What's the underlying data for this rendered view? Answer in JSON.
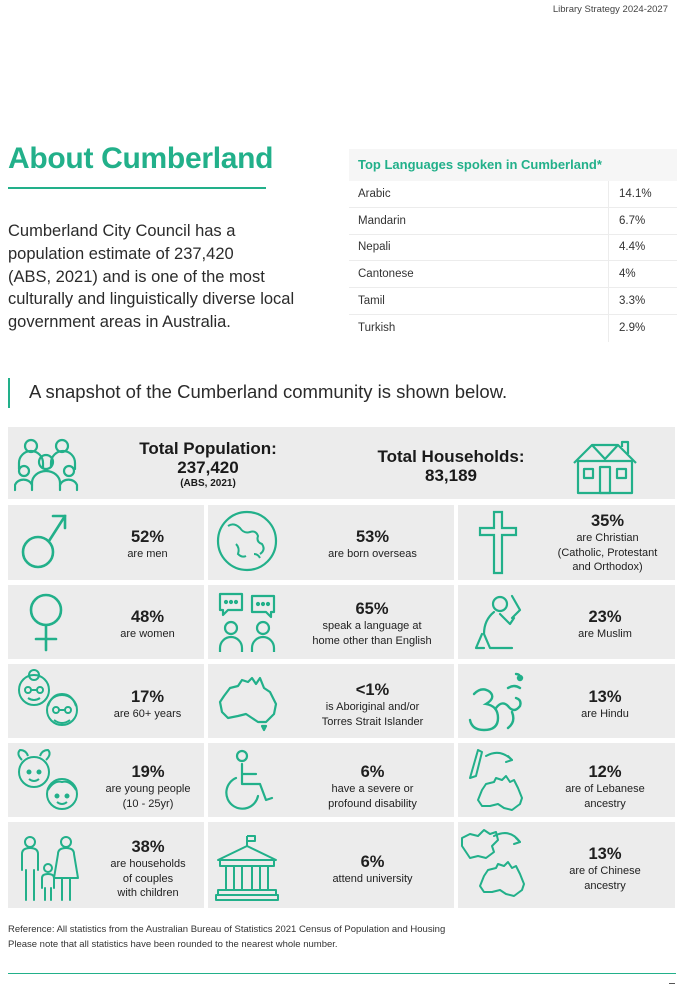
{
  "header": {
    "doc_title": "Library Strategy 2024-2027"
  },
  "about": {
    "heading": "About Cumberland",
    "lines": [
      "Cumberland City Council has a",
      "population estimate of 237,420",
      "(ABS, 2021) and is one of the most",
      "culturally and linguistically diverse local",
      "government areas in Australia."
    ]
  },
  "languages": {
    "title": "Top Languages spoken in Cumberland*",
    "rows": [
      {
        "name": "Arabic",
        "value": "14.1%"
      },
      {
        "name": "Mandarin",
        "value": "6.7%"
      },
      {
        "name": "Nepali",
        "value": "4.4%"
      },
      {
        "name": "Cantonese",
        "value": "4%"
      },
      {
        "name": "Tamil",
        "value": "3.3%"
      },
      {
        "name": "Turkish",
        "value": "2.9%"
      }
    ]
  },
  "snapshot": {
    "intro": "A snapshot of the Cumberland community is shown below."
  },
  "totals": {
    "population": {
      "label": "Total Population:",
      "value": "237,420",
      "source": "(ABS, 2021)"
    },
    "households": {
      "label": "Total Households:",
      "value": "83,189"
    }
  },
  "stats": {
    "men": {
      "pct": "52%",
      "lines": [
        "are men"
      ]
    },
    "overseas": {
      "pct": "53%",
      "lines": [
        "are born overseas"
      ]
    },
    "christian": {
      "pct": "35%",
      "lines": [
        "are Christian",
        "(Catholic, Protestant",
        "and Orthodox)"
      ]
    },
    "women": {
      "pct": "48%",
      "lines": [
        "are women"
      ]
    },
    "language": {
      "pct": "65%",
      "lines": [
        "speak a language at",
        "home other than English"
      ]
    },
    "muslim": {
      "pct": "23%",
      "lines": [
        "are Muslim"
      ]
    },
    "sixty": {
      "pct": "17%",
      "lines": [
        "are 60+ years"
      ]
    },
    "aboriginal": {
      "pct": "<1%",
      "lines": [
        "is Aboriginal and/or",
        "Torres Strait Islander"
      ]
    },
    "hindu": {
      "pct": "13%",
      "lines": [
        "are Hindu"
      ]
    },
    "young": {
      "pct": "19%",
      "lines": [
        "are young people",
        "(10 - 25yr)"
      ]
    },
    "disability": {
      "pct": "6%",
      "lines": [
        "have a severe or",
        "profound disability"
      ]
    },
    "lebanese": {
      "pct": "12%",
      "lines": [
        "are of Lebanese",
        "ancestry"
      ]
    },
    "couples": {
      "pct": "38%",
      "lines": [
        "are households",
        "of couples",
        "with children"
      ]
    },
    "university": {
      "pct": "6%",
      "lines": [
        "attend university"
      ]
    },
    "chinese": {
      "pct": "13%",
      "lines": [
        "are of Chinese",
        "ancestry"
      ]
    }
  },
  "icons": {
    "population": "people-group-icon",
    "households": "house-icon",
    "men": "male-symbol-icon",
    "overseas": "globe-icon",
    "christian": "cross-icon",
    "women": "female-symbol-icon",
    "language": "speech-bubbles-people-icon",
    "muslim": "praying-person-icon",
    "sixty": "elderly-couple-icon",
    "aboriginal": "australia-map-icon",
    "hindu": "om-symbol-icon",
    "young": "children-faces-icon",
    "disability": "wheelchair-icon",
    "lebanese": "lebanon-to-australia-icon",
    "couples": "family-icon",
    "university": "university-building-icon",
    "chinese": "china-to-australia-icon"
  },
  "reference": {
    "line1": "Reference: All statistics from the Australian Bureau of Statistics 2021 Census of Population and Housing",
    "line2": "Please note that all statistics have been rounded to the nearest whole number."
  },
  "colors": {
    "accent": "#22b08a",
    "cell": "#ececec",
    "text": "#2b2b2b"
  }
}
